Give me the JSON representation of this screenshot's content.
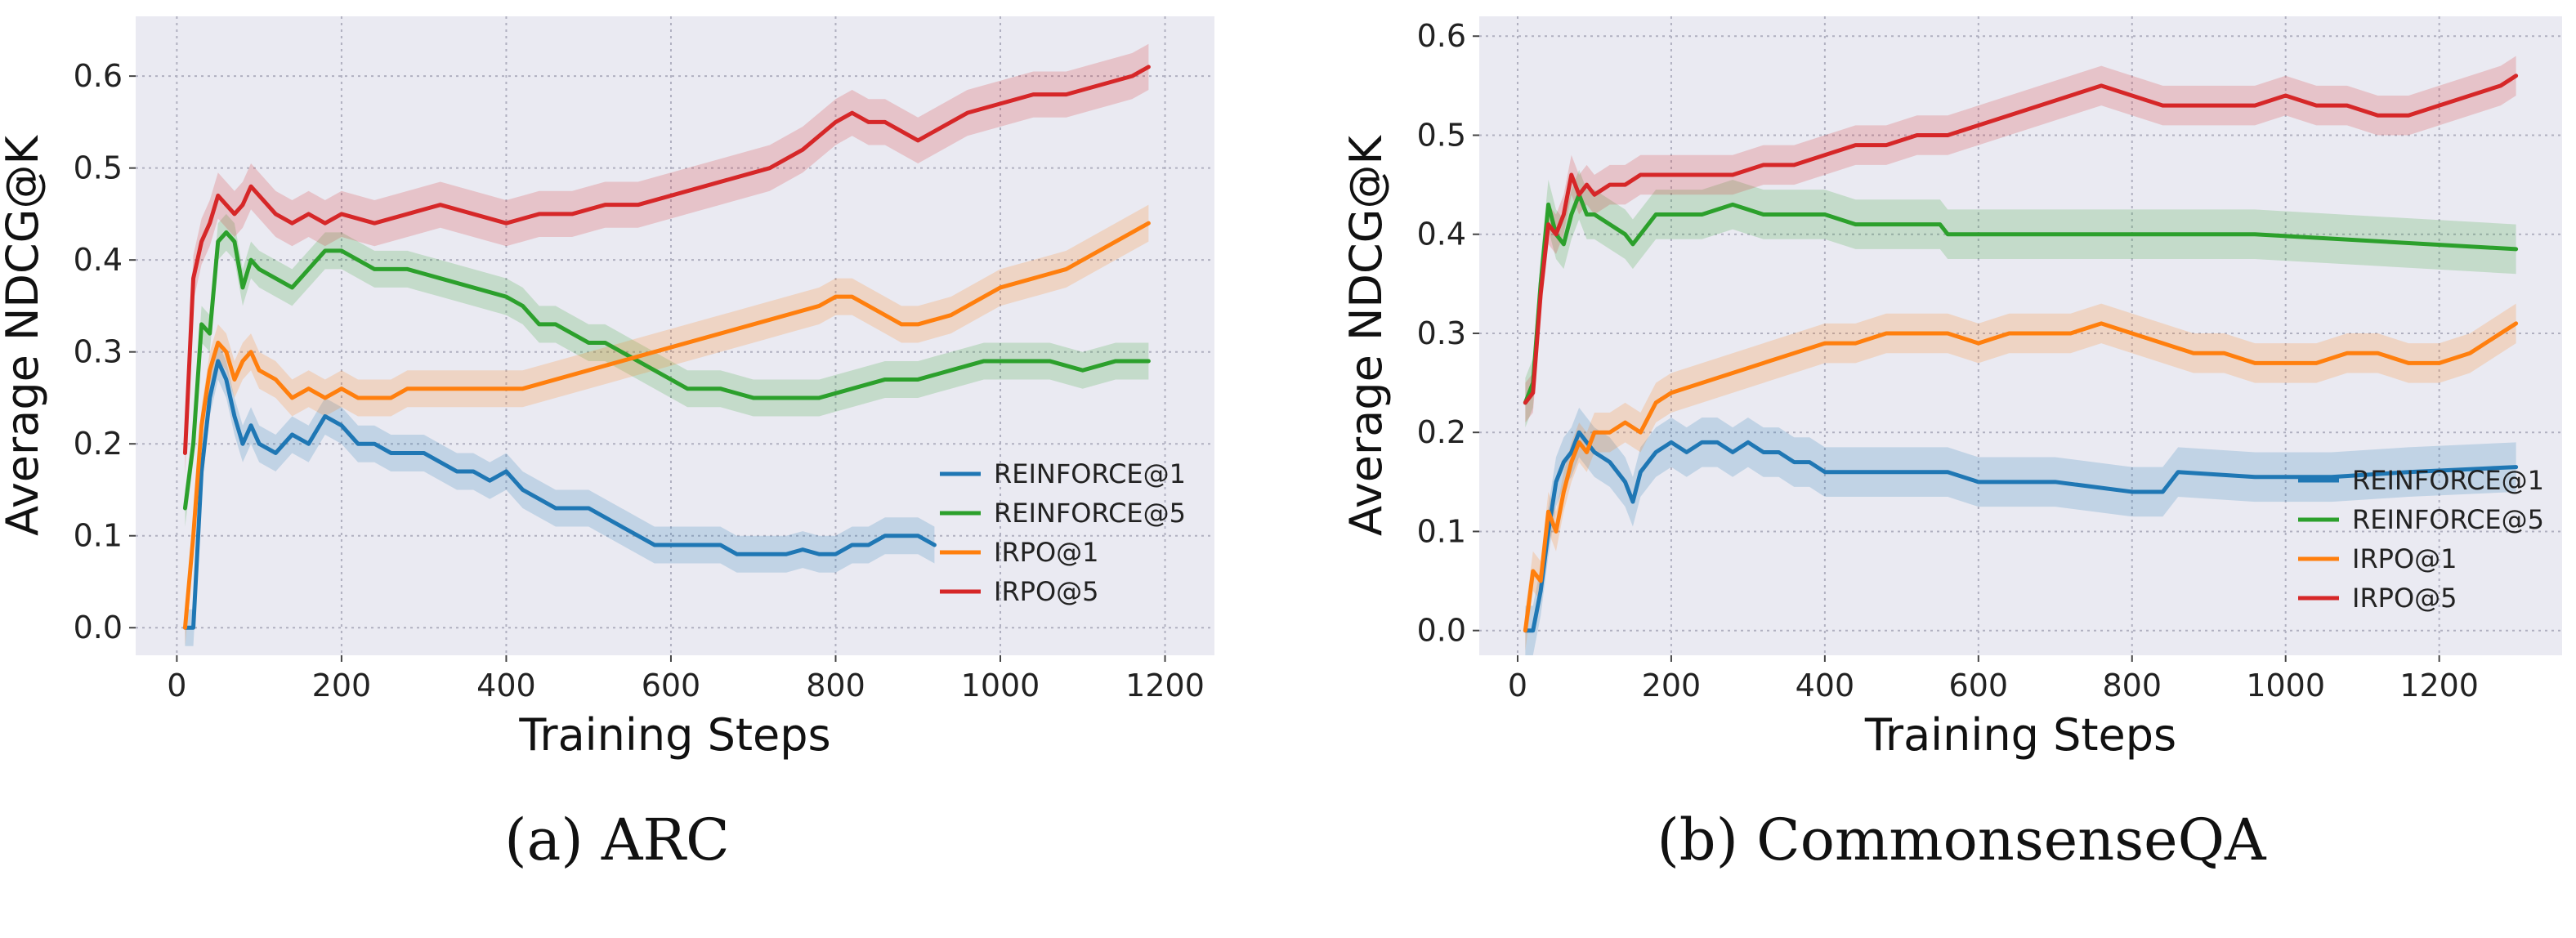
{
  "colors": {
    "plot_bg": "#eaeaf2",
    "grid": "#b0b0c0",
    "REINFORCE@1": "#1f77b4",
    "REINFORCE@5": "#2ca02c",
    "IRPO@1": "#ff7f0e",
    "IRPO@5": "#d62728"
  },
  "chart_data": [
    {
      "type": "line",
      "caption": "(a) ARC",
      "xlabel": "Training Steps",
      "ylabel": "Average NDCG@K",
      "xlim": [
        -50,
        1260
      ],
      "ylim": [
        -0.03,
        0.665
      ],
      "xticks": [
        0,
        200,
        400,
        600,
        800,
        1000,
        1200
      ],
      "yticks": [
        0.0,
        0.1,
        0.2,
        0.3,
        0.4,
        0.5,
        0.6
      ],
      "grid": true,
      "legend_position": "lower-right",
      "series": [
        {
          "name": "REINFORCE@1",
          "band": 0.02,
          "x": [
            10,
            20,
            30,
            40,
            50,
            60,
            70,
            80,
            90,
            100,
            120,
            140,
            160,
            180,
            200,
            220,
            240,
            260,
            280,
            300,
            320,
            340,
            360,
            380,
            400,
            420,
            440,
            460,
            480,
            500,
            520,
            540,
            560,
            580,
            600,
            620,
            640,
            660,
            680,
            700,
            720,
            740,
            760,
            780,
            800,
            820,
            840,
            860,
            880,
            900,
            920
          ],
          "y": [
            0.0,
            0.0,
            0.17,
            0.25,
            0.29,
            0.27,
            0.23,
            0.2,
            0.22,
            0.2,
            0.19,
            0.21,
            0.2,
            0.23,
            0.22,
            0.2,
            0.2,
            0.19,
            0.19,
            0.19,
            0.18,
            0.17,
            0.17,
            0.16,
            0.17,
            0.15,
            0.14,
            0.13,
            0.13,
            0.13,
            0.12,
            0.11,
            0.1,
            0.09,
            0.09,
            0.09,
            0.09,
            0.09,
            0.08,
            0.08,
            0.08,
            0.08,
            0.085,
            0.08,
            0.08,
            0.09,
            0.09,
            0.1,
            0.1,
            0.1,
            0.09
          ]
        },
        {
          "name": "REINFORCE@5",
          "band": 0.02,
          "x": [
            10,
            20,
            30,
            40,
            50,
            60,
            70,
            80,
            90,
            100,
            120,
            140,
            160,
            180,
            200,
            240,
            280,
            320,
            360,
            400,
            420,
            440,
            460,
            480,
            500,
            520,
            540,
            560,
            580,
            600,
            620,
            660,
            700,
            740,
            780,
            820,
            860,
            900,
            940,
            980,
            1000,
            1020,
            1060,
            1100,
            1140,
            1180
          ],
          "y": [
            0.13,
            0.2,
            0.33,
            0.32,
            0.42,
            0.43,
            0.42,
            0.37,
            0.4,
            0.39,
            0.38,
            0.37,
            0.39,
            0.41,
            0.41,
            0.39,
            0.39,
            0.38,
            0.37,
            0.36,
            0.35,
            0.33,
            0.33,
            0.32,
            0.31,
            0.31,
            0.3,
            0.29,
            0.28,
            0.27,
            0.26,
            0.26,
            0.25,
            0.25,
            0.25,
            0.26,
            0.27,
            0.27,
            0.28,
            0.29,
            0.29,
            0.29,
            0.29,
            0.28,
            0.29,
            0.29
          ]
        },
        {
          "name": "IRPO@1",
          "band": 0.02,
          "x": [
            10,
            20,
            30,
            40,
            50,
            60,
            70,
            80,
            90,
            100,
            120,
            140,
            160,
            180,
            200,
            220,
            240,
            260,
            280,
            300,
            340,
            380,
            420,
            460,
            500,
            540,
            580,
            620,
            660,
            700,
            740,
            780,
            800,
            820,
            840,
            860,
            880,
            900,
            940,
            980,
            1000,
            1040,
            1080,
            1120,
            1160,
            1180
          ],
          "y": [
            0.0,
            0.1,
            0.22,
            0.28,
            0.31,
            0.3,
            0.27,
            0.29,
            0.3,
            0.28,
            0.27,
            0.25,
            0.26,
            0.25,
            0.26,
            0.25,
            0.25,
            0.25,
            0.26,
            0.26,
            0.26,
            0.26,
            0.26,
            0.27,
            0.28,
            0.29,
            0.3,
            0.31,
            0.32,
            0.33,
            0.34,
            0.35,
            0.36,
            0.36,
            0.35,
            0.34,
            0.33,
            0.33,
            0.34,
            0.36,
            0.37,
            0.38,
            0.39,
            0.41,
            0.43,
            0.44
          ]
        },
        {
          "name": "IRPO@5",
          "band": 0.025,
          "x": [
            10,
            20,
            30,
            40,
            50,
            60,
            70,
            80,
            90,
            100,
            120,
            140,
            160,
            180,
            200,
            240,
            280,
            320,
            360,
            400,
            440,
            480,
            520,
            560,
            600,
            640,
            680,
            720,
            760,
            800,
            820,
            840,
            860,
            880,
            900,
            920,
            960,
            1000,
            1040,
            1080,
            1120,
            1160,
            1180
          ],
          "y": [
            0.19,
            0.38,
            0.42,
            0.44,
            0.47,
            0.46,
            0.45,
            0.46,
            0.48,
            0.47,
            0.45,
            0.44,
            0.45,
            0.44,
            0.45,
            0.44,
            0.45,
            0.46,
            0.45,
            0.44,
            0.45,
            0.45,
            0.46,
            0.46,
            0.47,
            0.48,
            0.49,
            0.5,
            0.52,
            0.55,
            0.56,
            0.55,
            0.55,
            0.54,
            0.53,
            0.54,
            0.56,
            0.57,
            0.58,
            0.58,
            0.59,
            0.6,
            0.61
          ]
        }
      ]
    },
    {
      "type": "line",
      "caption": "(b) CommonsenseQA",
      "xlabel": "Training Steps",
      "ylabel": "Average NDCG@K",
      "xlim": [
        -50,
        1360
      ],
      "ylim": [
        -0.025,
        0.62
      ],
      "xticks": [
        0,
        200,
        400,
        600,
        800,
        1000,
        1200
      ],
      "yticks": [
        0.0,
        0.1,
        0.2,
        0.3,
        0.4,
        0.5,
        0.6
      ],
      "grid": true,
      "legend_position": "lower-right",
      "series": [
        {
          "name": "REINFORCE@1",
          "band": 0.025,
          "x": [
            10,
            20,
            30,
            40,
            50,
            60,
            70,
            80,
            90,
            100,
            120,
            140,
            150,
            160,
            180,
            200,
            220,
            240,
            260,
            280,
            300,
            320,
            340,
            360,
            380,
            400,
            440,
            480,
            520,
            560,
            600,
            700,
            800,
            840,
            860,
            960,
            1060,
            1160,
            1300
          ],
          "y": [
            0.0,
            0.0,
            0.04,
            0.1,
            0.15,
            0.17,
            0.18,
            0.2,
            0.19,
            0.18,
            0.17,
            0.15,
            0.13,
            0.16,
            0.18,
            0.19,
            0.18,
            0.19,
            0.19,
            0.18,
            0.19,
            0.18,
            0.18,
            0.17,
            0.17,
            0.16,
            0.16,
            0.16,
            0.16,
            0.16,
            0.15,
            0.15,
            0.14,
            0.14,
            0.16,
            0.155,
            0.155,
            0.16,
            0.165
          ]
        },
        {
          "name": "REINFORCE@5",
          "band": 0.025,
          "x": [
            10,
            20,
            30,
            40,
            50,
            60,
            70,
            80,
            90,
            100,
            120,
            140,
            150,
            160,
            180,
            200,
            240,
            280,
            320,
            360,
            400,
            440,
            480,
            520,
            550,
            560,
            600,
            800,
            960,
            1300
          ],
          "y": [
            0.23,
            0.25,
            0.35,
            0.43,
            0.4,
            0.39,
            0.42,
            0.44,
            0.42,
            0.42,
            0.41,
            0.4,
            0.39,
            0.4,
            0.42,
            0.42,
            0.42,
            0.43,
            0.42,
            0.42,
            0.42,
            0.41,
            0.41,
            0.41,
            0.41,
            0.4,
            0.4,
            0.4,
            0.4,
            0.385
          ]
        },
        {
          "name": "IRPO@1",
          "band": 0.02,
          "x": [
            10,
            20,
            30,
            40,
            50,
            60,
            70,
            80,
            90,
            100,
            120,
            140,
            160,
            180,
            200,
            240,
            280,
            320,
            360,
            400,
            440,
            480,
            520,
            560,
            600,
            640,
            680,
            720,
            760,
            800,
            840,
            880,
            920,
            960,
            1000,
            1040,
            1080,
            1120,
            1160,
            1200,
            1240,
            1280,
            1300
          ],
          "y": [
            0.0,
            0.06,
            0.05,
            0.12,
            0.1,
            0.14,
            0.17,
            0.19,
            0.18,
            0.2,
            0.2,
            0.21,
            0.2,
            0.23,
            0.24,
            0.25,
            0.26,
            0.27,
            0.28,
            0.29,
            0.29,
            0.3,
            0.3,
            0.3,
            0.29,
            0.3,
            0.3,
            0.3,
            0.31,
            0.3,
            0.29,
            0.28,
            0.28,
            0.27,
            0.27,
            0.27,
            0.28,
            0.28,
            0.27,
            0.27,
            0.28,
            0.3,
            0.31
          ]
        },
        {
          "name": "IRPO@5",
          "band": 0.02,
          "x": [
            10,
            20,
            30,
            40,
            50,
            60,
            70,
            80,
            90,
            100,
            120,
            140,
            160,
            180,
            200,
            240,
            280,
            320,
            360,
            400,
            440,
            480,
            520,
            560,
            600,
            640,
            680,
            720,
            760,
            800,
            840,
            880,
            920,
            960,
            1000,
            1040,
            1080,
            1120,
            1160,
            1200,
            1240,
            1280,
            1300
          ],
          "y": [
            0.23,
            0.24,
            0.34,
            0.41,
            0.4,
            0.42,
            0.46,
            0.44,
            0.45,
            0.44,
            0.45,
            0.45,
            0.46,
            0.46,
            0.46,
            0.46,
            0.46,
            0.47,
            0.47,
            0.48,
            0.49,
            0.49,
            0.5,
            0.5,
            0.51,
            0.52,
            0.53,
            0.54,
            0.55,
            0.54,
            0.53,
            0.53,
            0.53,
            0.53,
            0.54,
            0.53,
            0.53,
            0.52,
            0.52,
            0.53,
            0.54,
            0.55,
            0.56
          ]
        }
      ]
    }
  ]
}
